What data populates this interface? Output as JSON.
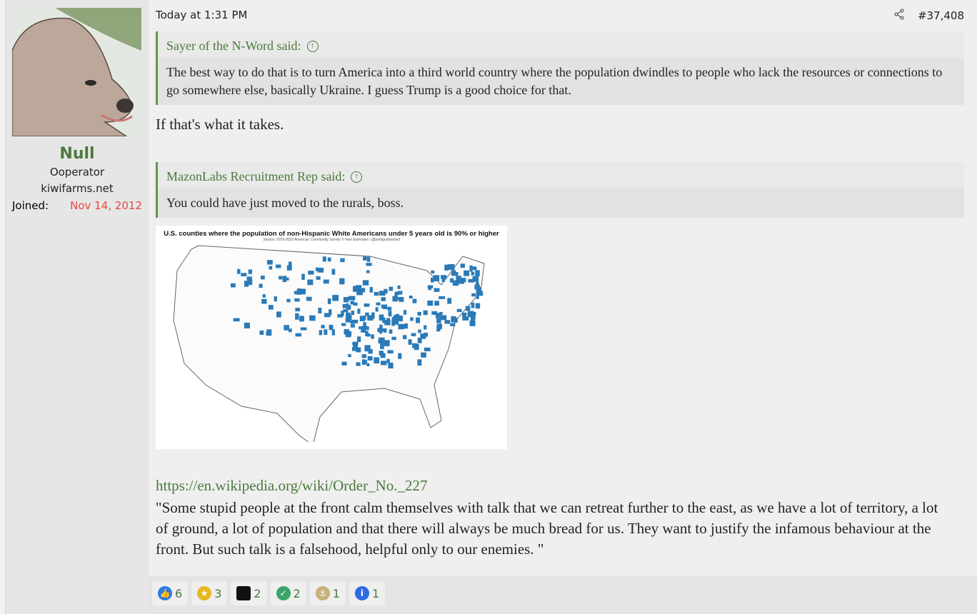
{
  "user": {
    "name": "Null",
    "title": "Ooperator",
    "site": "kiwifarms.net",
    "joined_label": "Joined:",
    "joined_value": "Nov 14, 2012"
  },
  "post": {
    "timestamp": "Today at 1:31 PM",
    "number": "#37,408",
    "quotes": [
      {
        "author": "Sayer of the N-Word said:",
        "text": "The best way to do that is to turn America into a third world country where the population dwindles to people who lack the resources or connections to go somewhere else, basically Ukraine. I guess Trump is a good choice for that."
      },
      {
        "author": "MazonLabs Recruitment Rep said:",
        "text": "You could have just moved to the rurals, boss."
      }
    ],
    "reply1": "If that's what it takes.",
    "image": {
      "title": "U.S. counties where the population of non-Hispanic White Americans under 5 years old is 90% or higher",
      "source": "Source: 2019-2023 American Community Survey 5-Year Estimates | @bahtgunbashed",
      "accent": "#2a7ab8"
    },
    "link": "https://en.wikipedia.org/wiki/Order_No._227",
    "citation": "\"Some stupid people at the front calm themselves with talk that we can retreat further to the east, as we have a lot of territory, a lot of ground, a lot of population and that there will always be much bread for us. They want to justify the infamous behaviour at the front. But such talk is a falsehood, helpful only to our enemies. \""
  },
  "reactions": [
    {
      "icon": "thumbs-up-icon",
      "count": "6"
    },
    {
      "icon": "medal-icon",
      "count": "3"
    },
    {
      "icon": "top-hat-icon",
      "count": "2"
    },
    {
      "icon": "checkmark-icon",
      "count": "2"
    },
    {
      "icon": "marine-emblem-icon",
      "count": "1"
    },
    {
      "icon": "info-icon",
      "count": "1"
    }
  ]
}
